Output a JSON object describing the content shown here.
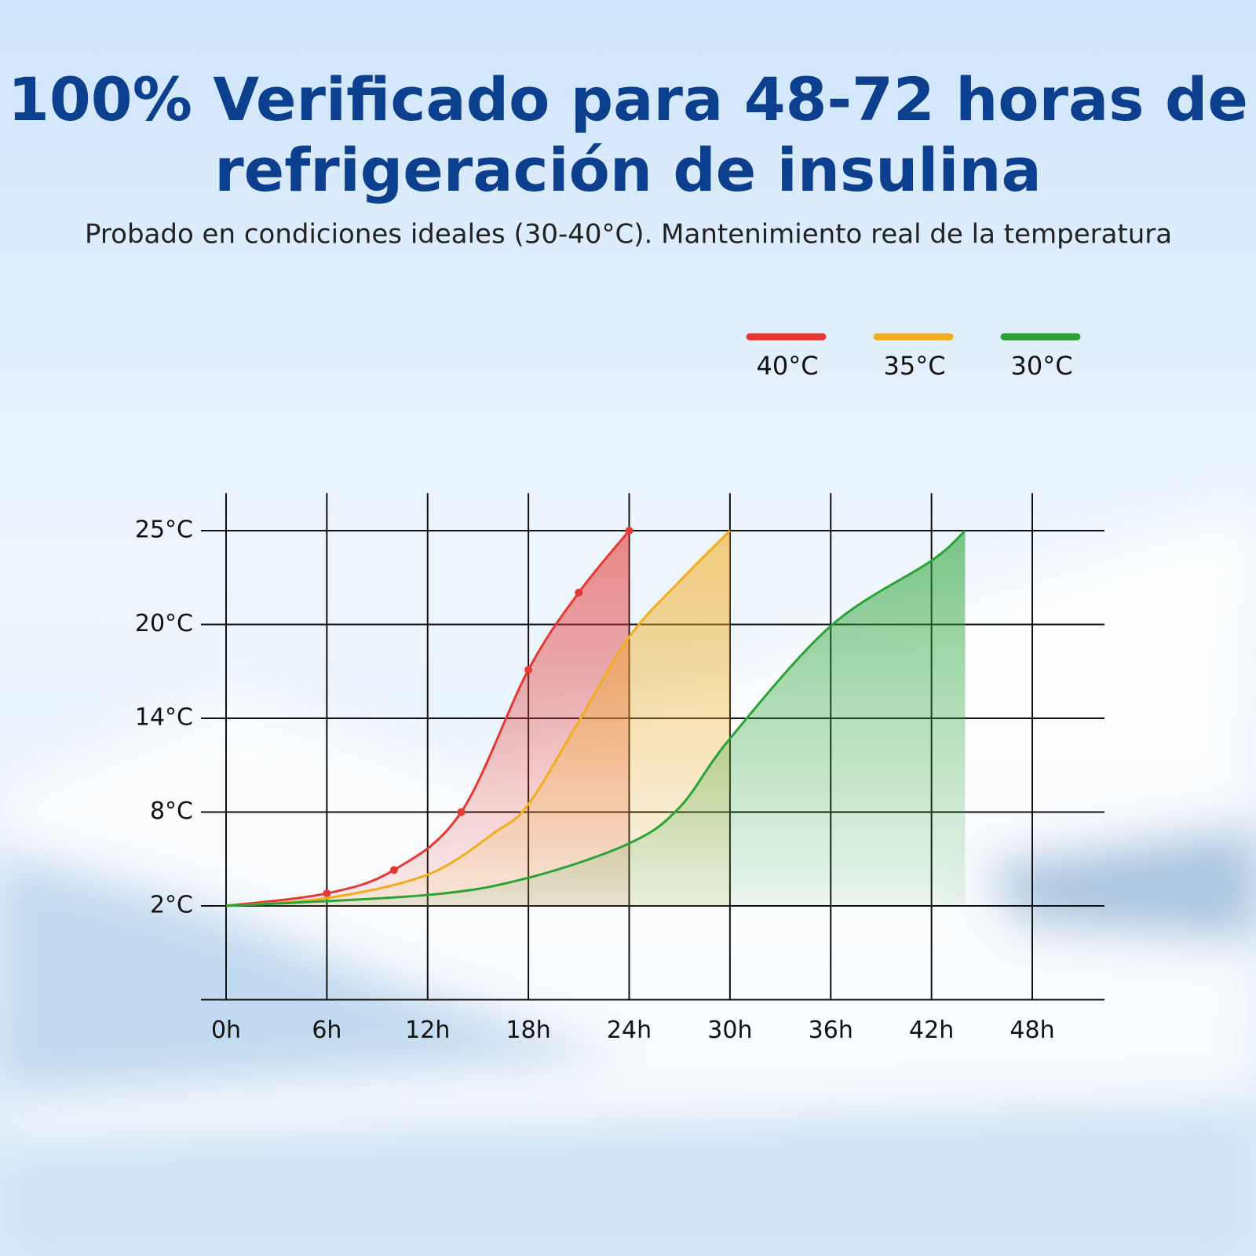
{
  "chart_data": {
    "type": "line",
    "title": [
      "100% Verificado para 48-72 horas de",
      "refrigeración de insulina"
    ],
    "subtitle": "Probado en condiciones ideales (30-40°C). Mantenimiento real de la temperatura",
    "legend": "top-right",
    "grid": true,
    "xlim": [
      -1.5,
      52.3
    ],
    "xticks": [
      {
        "value": 0,
        "label": "0h"
      },
      {
        "value": 6,
        "label": "6h"
      },
      {
        "value": 12,
        "label": "12h"
      },
      {
        "value": 18,
        "label": "18h"
      },
      {
        "value": 24,
        "label": "24h"
      },
      {
        "value": 30,
        "label": "30h"
      },
      {
        "value": 36,
        "label": "36h"
      },
      {
        "value": 42,
        "label": "42h"
      },
      {
        "value": 48,
        "label": "48h"
      }
    ],
    "ylim": [
      -4,
      27
    ],
    "yticks": [
      {
        "value": 2,
        "label": "2°C"
      },
      {
        "value": 8,
        "label": "8°C"
      },
      {
        "value": 14,
        "label": "14°C"
      },
      {
        "value": 20,
        "label": "20°C"
      },
      {
        "value": 25,
        "label": "25°C"
      }
    ],
    "series": [
      {
        "name": "40°C",
        "color": "#e53935",
        "markers": true,
        "x": [
          0,
          6,
          10,
          14,
          18,
          21,
          24
        ],
        "values": [
          2,
          2.8,
          4.3,
          8,
          17.1,
          21.7,
          25
        ]
      },
      {
        "name": "35°C",
        "color": "#f2ad1f",
        "x": [
          0,
          6,
          12,
          16,
          18,
          21,
          24,
          27,
          30
        ],
        "values": [
          2,
          2.5,
          4,
          6.7,
          8.5,
          13.8,
          19.2,
          22.3,
          25
        ]
      },
      {
        "name": "30°C",
        "color": "#2aa336",
        "x": [
          0,
          12,
          18,
          24,
          27,
          30,
          36,
          42,
          44
        ],
        "values": [
          2,
          2.7,
          3.8,
          6,
          8.3,
          12.7,
          19.9,
          23.4,
          25
        ]
      }
    ]
  }
}
